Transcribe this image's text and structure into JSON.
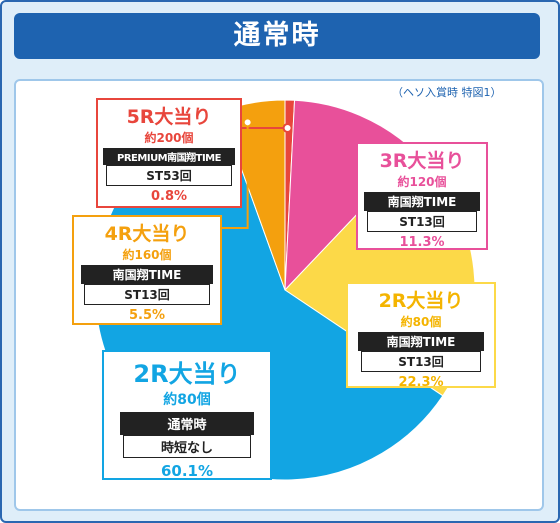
{
  "header": {
    "title": "通常時"
  },
  "note": "（ヘソ入賞時 特図1）",
  "colors": {
    "blue": "#12a5e3",
    "orange": "#f4a00e",
    "pink": "#e8509a",
    "yellow": "#fcd948",
    "red": "#e8463c"
  },
  "chart_data": {
    "type": "pie",
    "start_angle_deg": 0,
    "direction": "clockwise",
    "slices": [
      {
        "name": "5R大当り",
        "count": "約200個",
        "mode": "PREMIUM南国翔TIME",
        "st": "ST53回",
        "percent_label": "0.8%",
        "value": 0.8,
        "color": "#e8463c"
      },
      {
        "name": "3R大当り",
        "count": "約120個",
        "mode": "南国翔TIME",
        "st": "ST13回",
        "percent_label": "11.3%",
        "value": 11.3,
        "color": "#e8509a"
      },
      {
        "name": "2R大当り",
        "count": "約80個",
        "mode": "南国翔TIME",
        "st": "ST13回",
        "percent_label": "22.3%",
        "value": 22.3,
        "color": "#fcd948"
      },
      {
        "name": "2R大当り",
        "count": "約80個",
        "mode": "通常時",
        "st": "時短なし",
        "percent_label": "60.1%",
        "value": 60.1,
        "color": "#12a5e3"
      },
      {
        "name": "4R大当り",
        "count": "約160個",
        "mode": "南国翔TIME",
        "st": "ST13回",
        "percent_label": "5.5%",
        "value": 5.5,
        "color": "#f4a00e"
      }
    ]
  }
}
